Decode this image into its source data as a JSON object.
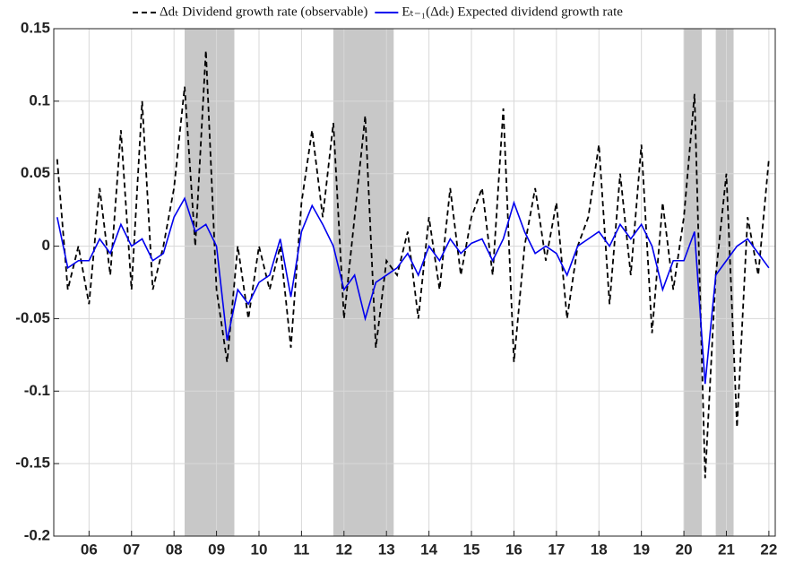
{
  "chart_data": {
    "type": "line",
    "x": [
      2005.25,
      2005.5,
      2005.75,
      2006,
      2006.25,
      2006.5,
      2006.75,
      2007,
      2007.25,
      2007.5,
      2007.75,
      2008,
      2008.25,
      2008.5,
      2008.75,
      2009,
      2009.25,
      2009.5,
      2009.75,
      2010,
      2010.25,
      2010.5,
      2010.75,
      2011,
      2011.25,
      2011.5,
      2011.75,
      2012,
      2012.25,
      2012.5,
      2012.75,
      2013,
      2013.25,
      2013.5,
      2013.75,
      2014,
      2014.25,
      2014.5,
      2014.75,
      2015,
      2015.25,
      2015.5,
      2015.75,
      2016,
      2016.25,
      2016.5,
      2016.75,
      2017,
      2017.25,
      2017.5,
      2017.75,
      2018,
      2018.25,
      2018.5,
      2018.75,
      2019,
      2019.25,
      2019.5,
      2019.75,
      2020,
      2020.25,
      2020.5,
      2020.75,
      2021,
      2021.25,
      2021.5,
      2021.75,
      2022
    ],
    "series": [
      {
        "name": "Δdₜ Dividend growth rate (observable)",
        "color": "#000000",
        "dashed": true,
        "values": [
          0.06,
          -0.03,
          0.0,
          -0.04,
          0.04,
          -0.02,
          0.08,
          -0.03,
          0.1,
          -0.03,
          0.0,
          0.04,
          0.11,
          0.0,
          0.135,
          -0.03,
          -0.08,
          0.0,
          -0.05,
          0.0,
          -0.03,
          0.0,
          -0.07,
          0.03,
          0.08,
          0.02,
          0.085,
          -0.05,
          0.02,
          0.09,
          -0.07,
          -0.01,
          -0.02,
          0.01,
          -0.05,
          0.02,
          -0.03,
          0.04,
          -0.02,
          0.02,
          0.04,
          -0.02,
          0.095,
          -0.08,
          0.0,
          0.04,
          -0.01,
          0.03,
          -0.05,
          0.0,
          0.02,
          0.07,
          -0.04,
          0.05,
          -0.02,
          0.07,
          -0.06,
          0.03,
          -0.03,
          0.02,
          0.105,
          -0.16,
          -0.02,
          0.05,
          -0.125,
          0.02,
          -0.02,
          0.06
        ]
      },
      {
        "name": "Eₜ₋₁(Δdₜ) Expected dividend growth rate",
        "color": "#0000ee",
        "dashed": false,
        "values": [
          0.02,
          -0.015,
          -0.01,
          -0.01,
          0.005,
          -0.005,
          0.015,
          0.0,
          0.005,
          -0.01,
          -0.005,
          0.02,
          0.033,
          0.01,
          0.015,
          0.0,
          -0.065,
          -0.03,
          -0.04,
          -0.025,
          -0.02,
          0.005,
          -0.035,
          0.01,
          0.028,
          0.015,
          0.0,
          -0.03,
          -0.02,
          -0.05,
          -0.025,
          -0.02,
          -0.015,
          -0.005,
          -0.02,
          0.0,
          -0.01,
          0.005,
          -0.005,
          0.002,
          0.005,
          -0.01,
          0.005,
          0.03,
          0.01,
          -0.005,
          0.0,
          -0.005,
          -0.02,
          0.0,
          0.005,
          0.01,
          0.0,
          0.015,
          0.005,
          0.015,
          0.0,
          -0.03,
          -0.01,
          -0.01,
          0.01,
          -0.095,
          -0.02,
          -0.01,
          0.0,
          0.005,
          -0.005,
          -0.015
        ]
      }
    ],
    "shaded_regions": [
      [
        2008.25,
        2009.42
      ],
      [
        2011.75,
        2013.17
      ],
      [
        2020.0,
        2020.42
      ],
      [
        2020.75,
        2021.17
      ]
    ],
    "shade_color": "#c8c8c8",
    "xlim": [
      2005.17,
      2022.15
    ],
    "xticks": [
      {
        "value": 2006,
        "label": "06"
      },
      {
        "value": 2007,
        "label": "07"
      },
      {
        "value": 2008,
        "label": "08"
      },
      {
        "value": 2009,
        "label": "09"
      },
      {
        "value": 2010,
        "label": "10"
      },
      {
        "value": 2011,
        "label": "11"
      },
      {
        "value": 2012,
        "label": "12"
      },
      {
        "value": 2013,
        "label": "13"
      },
      {
        "value": 2014,
        "label": "14"
      },
      {
        "value": 2015,
        "label": "15"
      },
      {
        "value": 2016,
        "label": "16"
      },
      {
        "value": 2017,
        "label": "17"
      },
      {
        "value": 2018,
        "label": "18"
      },
      {
        "value": 2019,
        "label": "19"
      },
      {
        "value": 2020,
        "label": "20"
      },
      {
        "value": 2021,
        "label": "21"
      },
      {
        "value": 2022,
        "label": "22"
      }
    ],
    "ylim": [
      -0.2,
      0.15
    ],
    "yticks": [
      -0.2,
      -0.15,
      -0.1,
      -0.05,
      0,
      0.05,
      0.1,
      0.15
    ],
    "grid": true
  }
}
